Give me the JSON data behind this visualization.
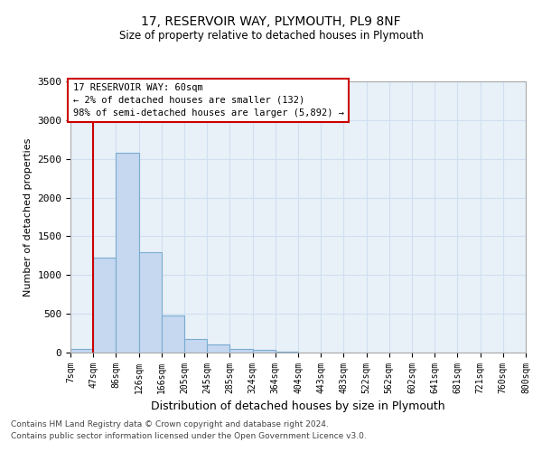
{
  "title1": "17, RESERVOIR WAY, PLYMOUTH, PL9 8NF",
  "title2": "Size of property relative to detached houses in Plymouth",
  "xlabel": "Distribution of detached houses by size in Plymouth",
  "ylabel": "Number of detached properties",
  "bins": [
    "7sqm",
    "47sqm",
    "86sqm",
    "126sqm",
    "166sqm",
    "205sqm",
    "245sqm",
    "285sqm",
    "324sqm",
    "364sqm",
    "404sqm",
    "443sqm",
    "483sqm",
    "522sqm",
    "562sqm",
    "602sqm",
    "641sqm",
    "681sqm",
    "721sqm",
    "760sqm",
    "800sqm"
  ],
  "values": [
    50,
    1220,
    2580,
    1300,
    480,
    175,
    100,
    50,
    30,
    10,
    5,
    2,
    0,
    0,
    0,
    0,
    0,
    0,
    0,
    0
  ],
  "bar_color": "#c5d8f0",
  "bar_edge_color": "#7aabcf",
  "grid_color": "#d0dff0",
  "background_color": "#e8f0f8",
  "property_line_color": "#cc0000",
  "annotation_text": "17 RESERVOIR WAY: 60sqm\n← 2% of detached houses are smaller (132)\n98% of semi-detached houses are larger (5,892) →",
  "footer1": "Contains HM Land Registry data © Crown copyright and database right 2024.",
  "footer2": "Contains public sector information licensed under the Open Government Licence v3.0.",
  "ylim": [
    0,
    3500
  ],
  "yticks": [
    0,
    500,
    1000,
    1500,
    2000,
    2500,
    3000,
    3500
  ]
}
